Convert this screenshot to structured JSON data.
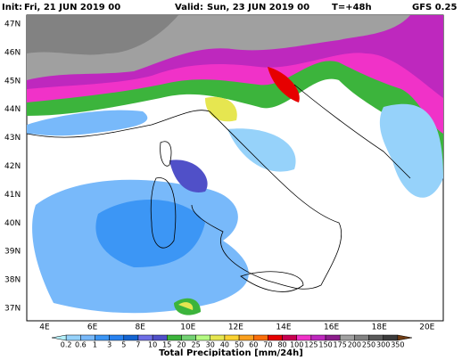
{
  "header": {
    "init_label": "Init:",
    "init": "Fri, 21 JUN 2019  00",
    "valid_label": "Valid:",
    "valid": "Sun, 23 JUN 2019  00",
    "step": "T=+48h",
    "model": "GFS 0.25"
  },
  "latitudes": [
    "37N",
    "38N",
    "39N",
    "40N",
    "41N",
    "42N",
    "43N",
    "44N",
    "45N",
    "46N",
    "47N"
  ],
  "longitudes": [
    "4E",
    "6E",
    "8E",
    "10E",
    "12E",
    "14E",
    "16E",
    "18E",
    "20E"
  ],
  "colorbar": {
    "title": "Total Precipitation [mm/24h]",
    "labels": [
      0.2,
      0.6,
      1,
      3,
      5,
      7,
      10,
      15,
      20,
      25,
      30,
      40,
      50,
      60,
      70,
      80,
      100,
      125,
      150,
      175,
      200,
      250,
      300,
      350
    ],
    "colors": [
      "#b4f0fa",
      "#96d2fa",
      "#78b9fa",
      "#3c96f5",
      "#2882f0",
      "#1464d2",
      "#6e6ee6",
      "#5050c8",
      "#3cb43c",
      "#73d273",
      "#b4fa82",
      "#e6e650",
      "#fad232",
      "#faa01e",
      "#fa6e0a",
      "#e60000",
      "#c80050",
      "#f032c8",
      "#be28be",
      "#8c1e8c",
      "#a0a0a0",
      "#828282",
      "#5a5a5a",
      "#3c3c3c",
      "#6e3c14"
    ]
  }
}
